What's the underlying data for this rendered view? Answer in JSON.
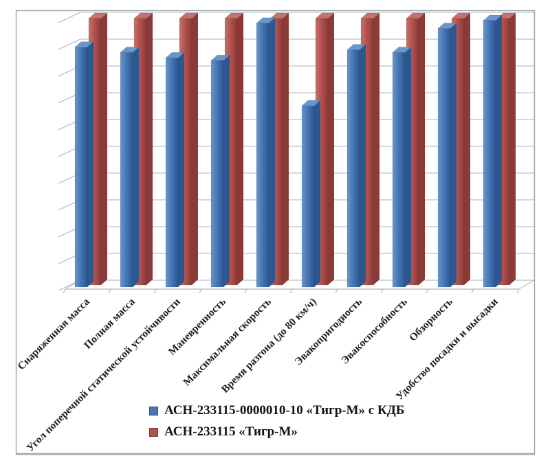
{
  "chart_data": {
    "type": "bar",
    "variant": "3d-clustered-column",
    "title": "",
    "categories": [
      "Снаряженная масса",
      "Полная масса",
      "Угол поперечной статической устойчивости",
      "Маневренность",
      "Максимальная скорость",
      "Время разгона (до 80 км/ч)",
      "Эвакопригодность",
      "Эвакоспособность",
      "Обзорность",
      "Удобство посадки и высадки"
    ],
    "series": [
      {
        "name": "АСН-233115-0000010-10 «Тигр-М» с КДБ",
        "color": "#4678b6",
        "color_dark": "#2d5791",
        "color_light": "#6b96cb",
        "values": [
          0.9,
          0.88,
          0.86,
          0.85,
          0.99,
          0.68,
          0.89,
          0.88,
          0.97,
          1.0
        ]
      },
      {
        "name": "АСН-233115 «Тигр-М»",
        "color": "#b5524e",
        "color_dark": "#8c3a37",
        "color_light": "#c4736c",
        "values": [
          1.0,
          1.0,
          1.0,
          1.0,
          1.0,
          1.0,
          1.0,
          1.0,
          1.0,
          1.0
        ]
      }
    ],
    "ylim": [
      0,
      1.0
    ],
    "gridline_step": 0.1,
    "grid": true,
    "value_axis_labels_visible": false,
    "category_label_rotation_deg": -45,
    "legend_position": "bottom-center"
  },
  "colors": {
    "background": "#ffffff",
    "frame": "#9ca2aa",
    "frame_shadow": "#b9bcc2",
    "gridline": "#abb3b9",
    "category_text": "#1d1d1d",
    "legend_text": "#141414"
  }
}
